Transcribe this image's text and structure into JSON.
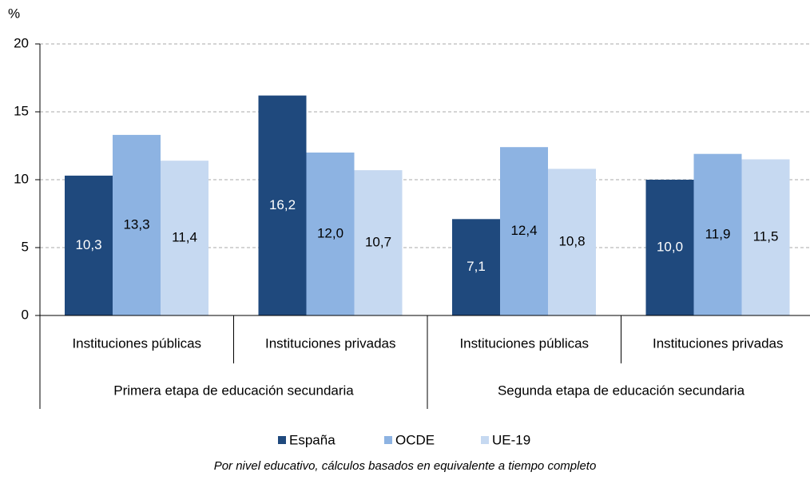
{
  "chart_data": {
    "type": "bar",
    "ylabel": "%",
    "groups": [
      {
        "name": "Primera etapa de educación secundaria",
        "categories": [
          "Instituciones públicas",
          "Instituciones privadas"
        ]
      },
      {
        "name": "Segunda etapa de educación secundaria",
        "categories": [
          "Instituciones públicas",
          "Instituciones privadas"
        ]
      }
    ],
    "series": [
      {
        "name": "España",
        "color": "#1f497d",
        "label_color": "#ffffff",
        "values": [
          10.3,
          16.2,
          7.1,
          10.0
        ],
        "value_labels": [
          "10,3",
          "16,2",
          "7,1",
          "10,0"
        ]
      },
      {
        "name": "OCDE",
        "color": "#8db3e2",
        "label_color": "#000000",
        "values": [
          13.3,
          12.0,
          12.4,
          11.9
        ],
        "value_labels": [
          "13,3",
          "12,0",
          "12,4",
          "11,9"
        ]
      },
      {
        "name": "UE-19",
        "color": "#c6d9f1",
        "label_color": "#000000",
        "values": [
          11.4,
          10.7,
          10.8,
          11.5
        ],
        "value_labels": [
          "11,4",
          "10,7",
          "10,8",
          "11,5"
        ]
      }
    ],
    "ylim": [
      0,
      20
    ],
    "yticks": [
      0,
      5,
      10,
      15,
      20
    ],
    "grid": true,
    "legend": "bottom",
    "note": "Por nivel educativo, cálculos basados en equivalente a tiempo completo"
  }
}
